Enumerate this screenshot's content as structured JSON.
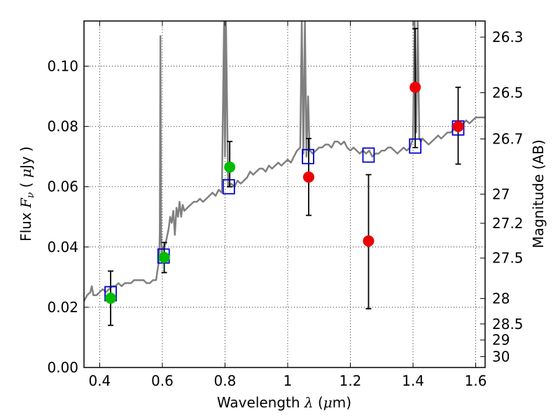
{
  "chart_data": {
    "type": "scatter",
    "xlabel": {
      "prefix": "Wavelength  ",
      "symbol": "λ",
      "unit": " (",
      "unit_sym": "μ",
      "unit_end": "m)"
    },
    "ylabel": {
      "prefix": "Flux  ",
      "symbol": "F",
      "sub": "ν",
      "unit": "  ( ",
      "unit_sym": "μ",
      "unit_end": "Jy )"
    },
    "y2label": "Magnitude (AB)",
    "xlim": [
      0.35,
      1.63
    ],
    "ylim": [
      0.0,
      0.115
    ],
    "grid": true,
    "x_ticks": [
      0.4,
      0.6,
      0.8,
      1.0,
      1.2,
      1.4,
      1.6
    ],
    "x_tick_labels": [
      "0.4",
      "0.6",
      "0.8",
      "1",
      "1.2",
      "1.4",
      "1.6"
    ],
    "y_ticks": [
      0.0,
      0.02,
      0.04,
      0.06,
      0.08,
      0.1
    ],
    "y_tick_labels": [
      "0.00",
      "0.02",
      "0.04",
      "0.06",
      "0.08",
      "0.10"
    ],
    "mag_ticks": [
      26.3,
      26.5,
      26.7,
      27,
      27.2,
      27.5,
      28,
      28.5,
      29,
      30
    ],
    "mag_tick_labels": [
      "26.3",
      "26.5",
      "26.7",
      "27",
      "27.2",
      "27.5",
      "28",
      "28.5",
      "29",
      "30"
    ],
    "series": [
      {
        "kind": "line",
        "color": "#808080",
        "x": [
          0.35,
          0.36,
          0.37,
          0.375,
          0.38,
          0.39,
          0.4,
          0.41,
          0.42,
          0.43,
          0.44,
          0.45,
          0.46,
          0.47,
          0.48,
          0.49,
          0.5,
          0.51,
          0.52,
          0.53,
          0.54,
          0.55,
          0.56,
          0.57,
          0.58,
          0.59,
          0.592,
          0.594,
          0.596,
          0.598,
          0.6,
          0.61,
          0.62,
          0.625,
          0.63,
          0.635,
          0.64,
          0.645,
          0.65,
          0.655,
          0.66,
          0.665,
          0.67,
          0.68,
          0.69,
          0.7,
          0.71,
          0.72,
          0.73,
          0.74,
          0.75,
          0.76,
          0.77,
          0.78,
          0.79,
          0.797,
          0.8,
          0.803,
          0.81,
          0.82,
          0.83,
          0.84,
          0.85,
          0.86,
          0.87,
          0.88,
          0.89,
          0.9,
          0.91,
          0.92,
          0.93,
          0.94,
          0.95,
          0.96,
          0.97,
          0.98,
          0.99,
          1.0,
          1.01,
          1.02,
          1.03,
          1.04,
          1.045,
          1.05,
          1.055,
          1.06,
          1.065,
          1.07,
          1.08,
          1.09,
          1.1,
          1.11,
          1.12,
          1.13,
          1.14,
          1.15,
          1.16,
          1.17,
          1.18,
          1.19,
          1.2,
          1.21,
          1.22,
          1.23,
          1.24,
          1.25,
          1.26,
          1.27,
          1.28,
          1.29,
          1.3,
          1.31,
          1.32,
          1.33,
          1.34,
          1.35,
          1.36,
          1.37,
          1.38,
          1.39,
          1.4,
          1.405,
          1.41,
          1.415,
          1.42,
          1.425,
          1.43,
          1.44,
          1.45,
          1.46,
          1.47,
          1.48,
          1.49,
          1.5,
          1.51,
          1.52,
          1.53,
          1.54,
          1.55,
          1.56,
          1.57,
          1.58,
          1.59,
          1.6,
          1.61,
          1.62,
          1.63
        ],
        "y": [
          0.022,
          0.024,
          0.025,
          0.027,
          0.024,
          0.024,
          0.025,
          0.026,
          0.025,
          0.026,
          0.027,
          0.027,
          0.028,
          0.027,
          0.028,
          0.028,
          0.028,
          0.029,
          0.029,
          0.029,
          0.029,
          0.028,
          0.028,
          0.029,
          0.029,
          0.036,
          0.045,
          0.11,
          0.045,
          0.038,
          0.039,
          0.041,
          0.046,
          0.05,
          0.048,
          0.052,
          0.044,
          0.053,
          0.05,
          0.055,
          0.05,
          0.054,
          0.052,
          0.053,
          0.054,
          0.055,
          0.055,
          0.056,
          0.055,
          0.056,
          0.057,
          0.058,
          0.057,
          0.059,
          0.058,
          0.115,
          0.07,
          0.115,
          0.06,
          0.061,
          0.06,
          0.062,
          0.061,
          0.062,
          0.063,
          0.065,
          0.064,
          0.065,
          0.066,
          0.066,
          0.065,
          0.067,
          0.066,
          0.067,
          0.068,
          0.067,
          0.068,
          0.069,
          0.068,
          0.07,
          0.072,
          0.073,
          0.115,
          0.071,
          0.115,
          0.07,
          0.09,
          0.072,
          0.071,
          0.072,
          0.073,
          0.073,
          0.074,
          0.074,
          0.073,
          0.075,
          0.075,
          0.074,
          0.075,
          0.073,
          0.072,
          0.073,
          0.072,
          0.071,
          0.072,
          0.071,
          0.072,
          0.07,
          0.071,
          0.071,
          0.072,
          0.072,
          0.073,
          0.073,
          0.072,
          0.071,
          0.072,
          0.073,
          0.072,
          0.073,
          0.076,
          0.115,
          0.078,
          0.115,
          0.076,
          0.075,
          0.076,
          0.075,
          0.074,
          0.075,
          0.076,
          0.077,
          0.076,
          0.077,
          0.078,
          0.078,
          0.079,
          0.08,
          0.081,
          0.081,
          0.082,
          0.081,
          0.082,
          0.083,
          0.083,
          0.083,
          0.083
        ]
      },
      {
        "kind": "open-square",
        "color": "#0000cc",
        "x": [
          0.435,
          0.604,
          0.812,
          1.065,
          1.258,
          1.407,
          1.544
        ],
        "y": [
          0.0245,
          0.037,
          0.06,
          0.07,
          0.0705,
          0.0735,
          0.0795
        ]
      },
      {
        "kind": "filled-circle",
        "color": "#00bb00",
        "x": [
          0.435,
          0.606,
          0.815
        ],
        "y": [
          0.023,
          0.0365,
          0.0665
        ],
        "yerr_low": [
          0.014,
          0.0315,
          0.06
        ],
        "yerr_high": [
          0.032,
          0.0415,
          0.075
        ]
      },
      {
        "kind": "filled-circle",
        "color": "#ee0000",
        "x": [
          1.067,
          1.258,
          1.407,
          1.544
        ],
        "y": [
          0.0632,
          0.042,
          0.093,
          0.08
        ],
        "yerr_low": [
          0.0505,
          0.0195,
          0.073,
          0.0675
        ],
        "yerr_high": [
          0.076,
          0.064,
          0.1125,
          0.093
        ]
      }
    ]
  }
}
